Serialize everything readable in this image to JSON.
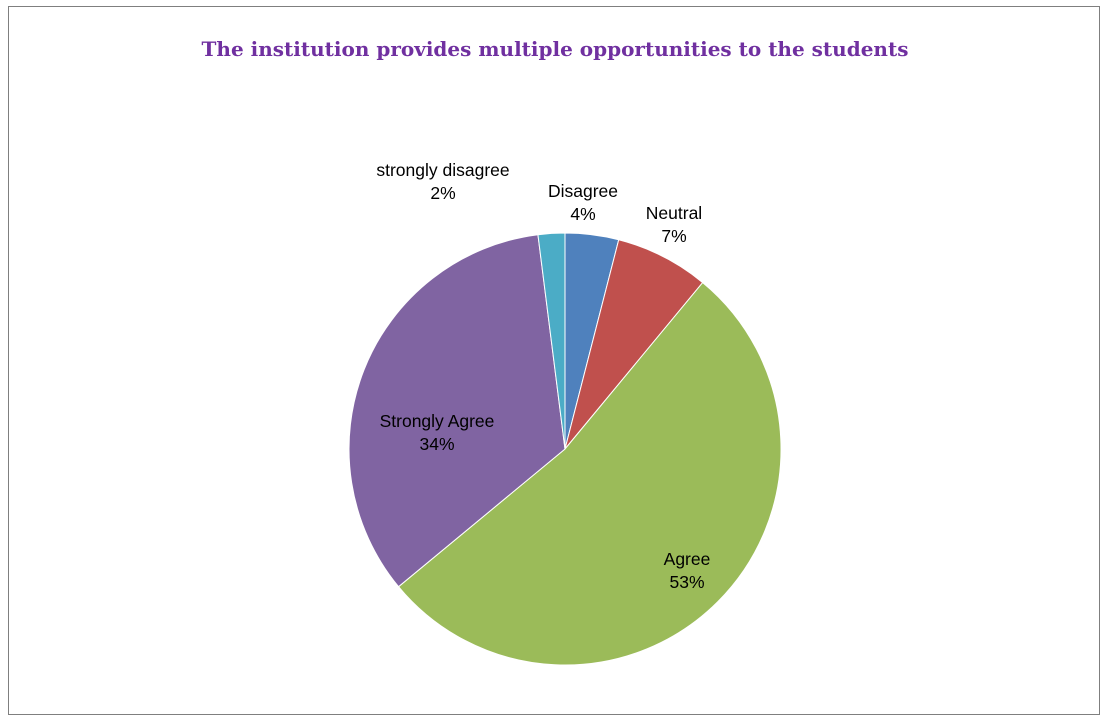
{
  "chart_data": {
    "type": "pie",
    "title": "The institution provides multiple opportunities to the students",
    "categories": [
      "Disagree",
      "Neutral",
      "Agree",
      "Strongly Agree",
      "strongly disagree"
    ],
    "values": [
      4,
      7,
      53,
      34,
      2
    ],
    "value_labels": [
      "4%",
      "7%",
      "53%",
      "34%",
      "2%"
    ],
    "colors": [
      "#4f81bd",
      "#c0504d",
      "#9bbb59",
      "#8064a2",
      "#4bacc6"
    ],
    "start": "12 o'clock, clockwise",
    "legend": "none (data labels)"
  }
}
